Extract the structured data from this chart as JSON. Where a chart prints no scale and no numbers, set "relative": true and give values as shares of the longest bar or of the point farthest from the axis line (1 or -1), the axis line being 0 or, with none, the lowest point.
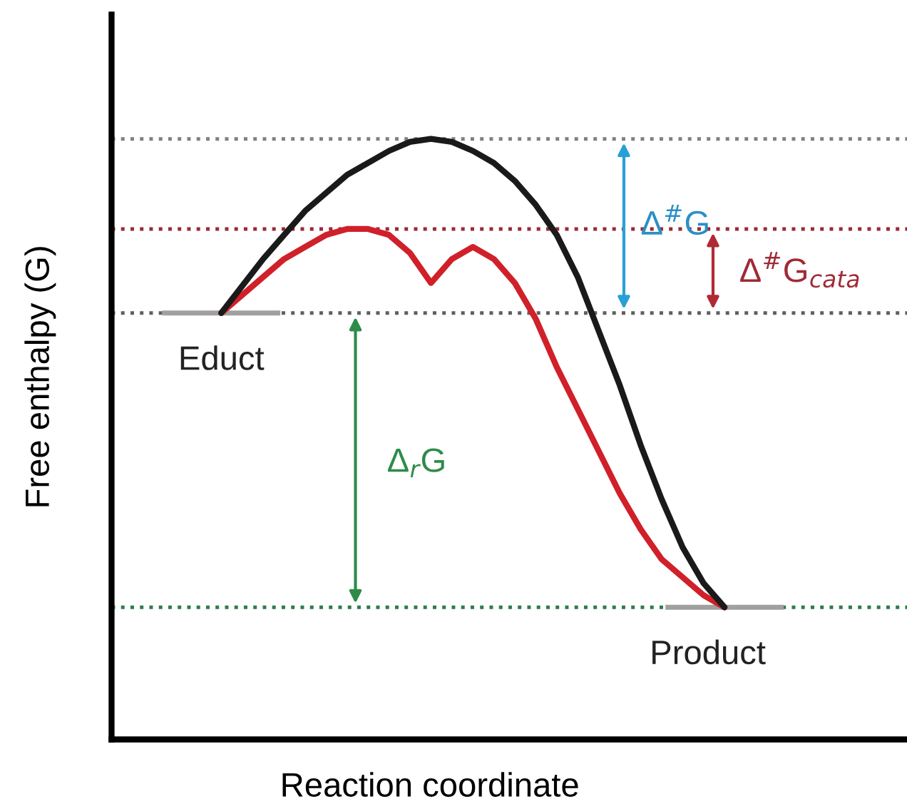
{
  "chart_data": {
    "type": "line",
    "relative": true,
    "xlabel": "Reaction coordinate",
    "ylabel": "Free enthalpy (G)",
    "categories": [
      null,
      null,
      null,
      null,
      null,
      null,
      null,
      null,
      null,
      null,
      null,
      null,
      null,
      null,
      null,
      null,
      null,
      null,
      null,
      null,
      null,
      null,
      null,
      null,
      null
    ],
    "series": [
      {
        "color": "#1a1a1a",
        "values": [
          0.71,
          0.755,
          0.8,
          0.84,
          0.88,
          0.91,
          0.94,
          0.96,
          0.98,
          0.995,
          1.0,
          0.995,
          0.98,
          0.96,
          0.93,
          0.89,
          0.84,
          0.77,
          0.68,
          0.59,
          0.49,
          0.4,
          0.32,
          0.26,
          0.22
        ]
      },
      {
        "color": "#d0202a",
        "values": [
          0.71,
          0.74,
          0.77,
          0.8,
          0.82,
          0.84,
          0.85,
          0.85,
          0.84,
          0.81,
          0.76,
          0.8,
          0.82,
          0.8,
          0.76,
          0.7,
          0.62,
          0.55,
          0.48,
          0.41,
          0.35,
          0.3,
          0.27,
          0.24,
          0.22
        ]
      }
    ],
    "ref_lines": [
      {
        "axis": "y",
        "value": 1.0,
        "color": "#808080",
        "line_style": "dotted"
      },
      {
        "axis": "y",
        "value": 0.85,
        "color": "#9b2a35",
        "line_style": "dotted"
      },
      {
        "axis": "y",
        "value": 0.71,
        "color": "#606060",
        "line_style": "dotted"
      },
      {
        "axis": "y",
        "value": 0.22,
        "color": "#2e7d4a",
        "line_style": "dotted"
      }
    ],
    "annotations": [
      "Educt",
      "Product",
      "Δ$^{#}$G",
      "Δ$^{#}$G$_{cata}$",
      "Δ$_{r}$G"
    ],
    "marker": "none",
    "line_style": "solid"
  }
}
